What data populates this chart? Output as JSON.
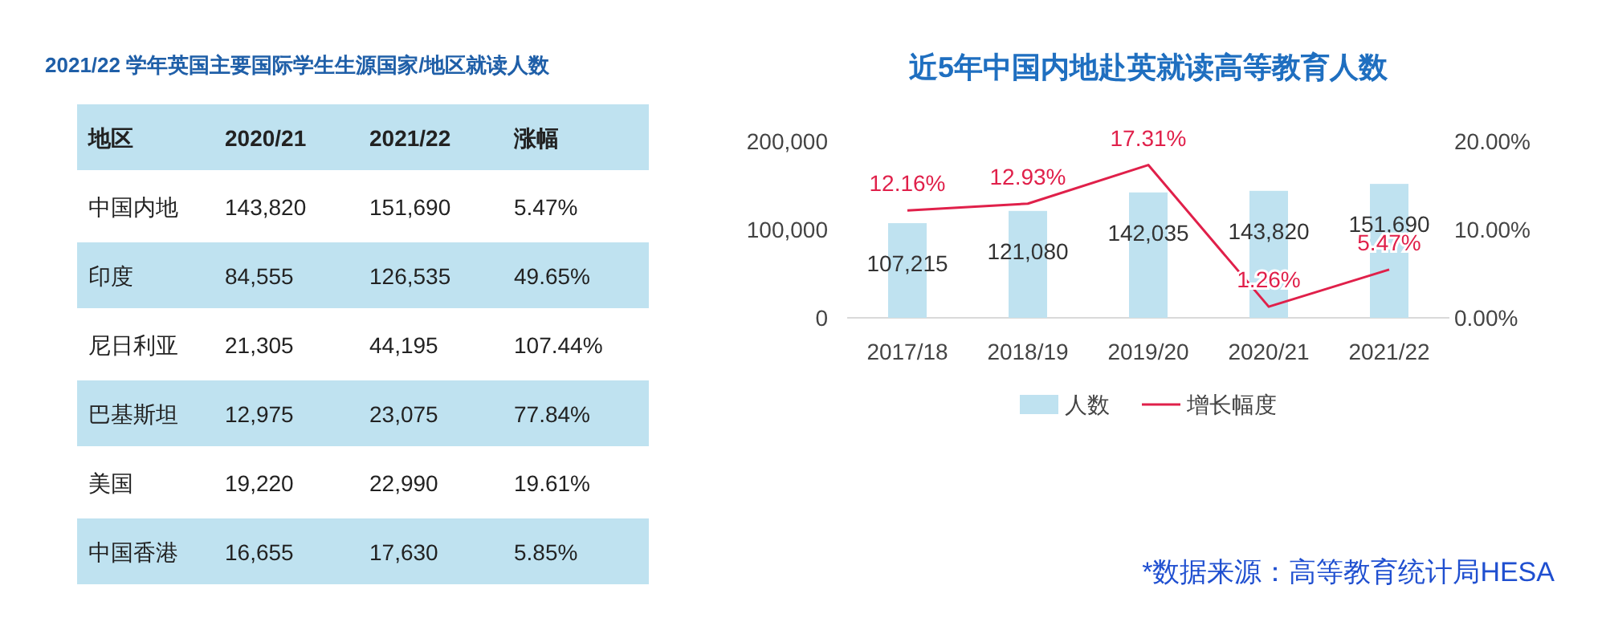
{
  "chart_data": [
    {
      "type": "other",
      "title": "2021/22 学年英国主要国际学生生源国家/地区就读人数",
      "annotations": [
        "地区",
        "2020/21",
        "2021/22",
        "涨幅",
        "中国内地",
        "143,820",
        "151,690",
        "5.47%",
        "印度",
        "84,555",
        "126,535",
        "49.65%",
        "尼日利亚",
        "21,305",
        "44,195",
        "107.44%",
        "巴基斯坦",
        "12,975",
        "23,075",
        "77.84%",
        "美国",
        "19,220",
        "22,990",
        "19.61%",
        "中国香港",
        "16,655",
        "17,630",
        "5.85%"
      ]
    },
    {
      "type": "bar",
      "title": "近5年中国内地赴英就读高等教育人数",
      "categories": [
        "2017/18",
        "2018/19",
        "2019/20",
        "2020/21",
        "2021/22"
      ],
      "series": [
        {
          "name": "人数",
          "color": "#bfe2f0",
          "values": [
            107215,
            121080,
            142035,
            143820,
            151690
          ],
          "value_labels": [
            "107,215",
            "121,080",
            "142,035",
            "143,820",
            "151,690"
          ]
        },
        {
          "name": "增长幅度",
          "type": "line",
          "axis": "y2",
          "color": "#e0204a",
          "values": [
            12.16,
            12.93,
            17.31,
            1.26,
            5.47
          ],
          "value_labels": [
            "12.16%",
            "12.93%",
            "17.31%",
            "1.26%",
            "5.47%"
          ]
        }
      ],
      "ylim": [
        0,
        200000
      ],
      "yticks": [
        {
          "value": 0,
          "label": "0"
        },
        {
          "value": 100000,
          "label": "100,000"
        },
        {
          "value": 200000,
          "label": "200,000"
        }
      ],
      "y2lim": [
        0,
        20
      ],
      "y2ticks": [
        {
          "value": 0,
          "label": "0.00%"
        },
        {
          "value": 10,
          "label": "10.00%"
        },
        {
          "value": 20,
          "label": "20.00%"
        }
      ],
      "legend": "bottom",
      "annotations": [
        "*数据来源：高等教育统计局HESA"
      ]
    }
  ]
}
